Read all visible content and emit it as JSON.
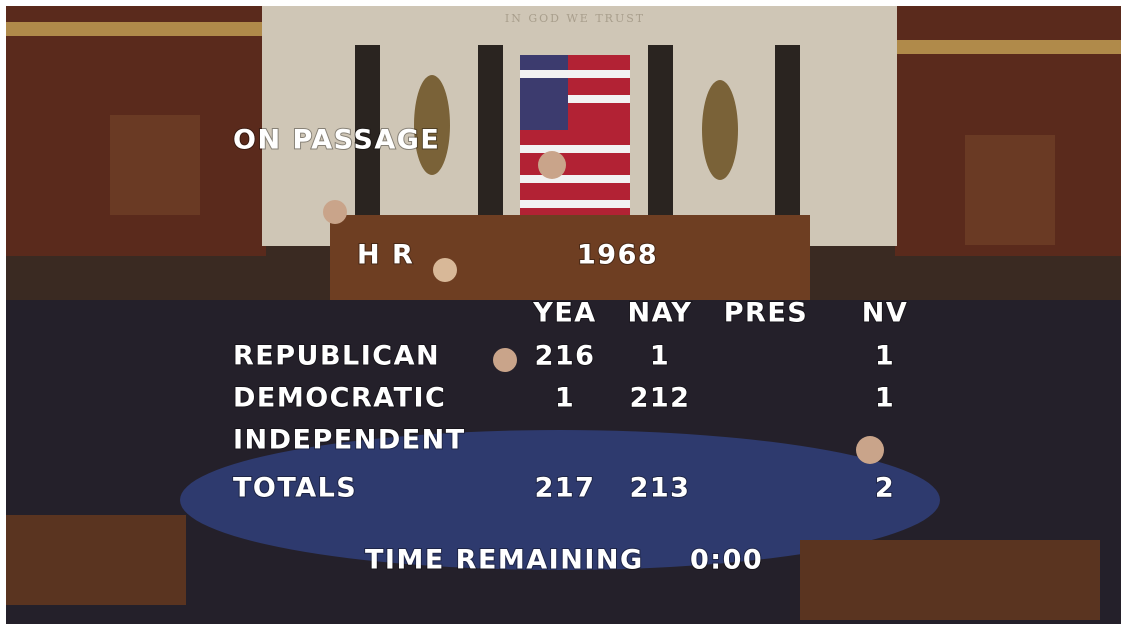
{
  "background": {
    "motto": "IN GOD WE TRUST"
  },
  "overlay": {
    "title": "ON PASSAGE",
    "bill_prefix": "H R",
    "bill_number": "1968",
    "columns": {
      "yea": "YEA",
      "nay": "NAY",
      "pres": "PRES",
      "nv": "NV"
    },
    "rows": [
      {
        "party": "REPUBLICAN",
        "yea": 216,
        "nay": 1,
        "nv": 1
      },
      {
        "party": "DEMOCRATIC",
        "yea": 1,
        "nay": 212,
        "nv": 1
      },
      {
        "party": "INDEPENDENT"
      },
      {
        "party": "TOTALS",
        "yea": 217,
        "nay": 213,
        "nv": 2
      }
    ],
    "time_label": "TIME REMAINING",
    "time_value": "0:00"
  }
}
